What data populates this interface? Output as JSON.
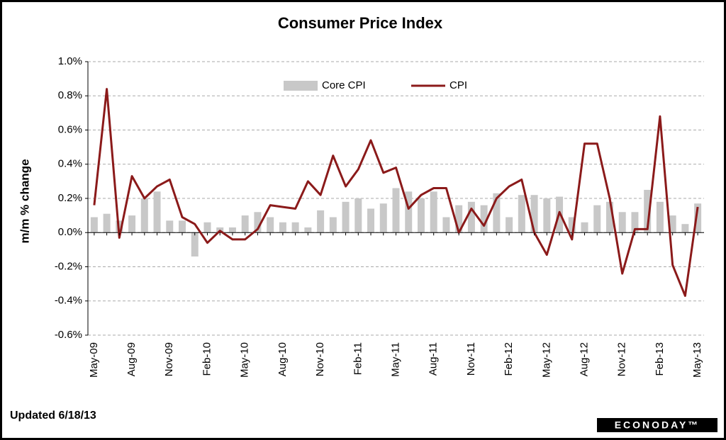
{
  "chart_data": {
    "type": "bar_line",
    "title": "Consumer Price Index",
    "y_label": "m/m % change",
    "footnote": "Updated 6/18/13",
    "source": "ECONODAY™",
    "categories": [
      "May-09",
      null,
      null,
      "Aug-09",
      null,
      null,
      "Nov-09",
      null,
      null,
      "Feb-10",
      null,
      null,
      "May-10",
      null,
      null,
      "Aug-10",
      null,
      null,
      "Nov-10",
      null,
      null,
      "Feb-11",
      null,
      null,
      "May-11",
      null,
      null,
      "Aug-11",
      null,
      null,
      "Nov-11",
      null,
      null,
      "Feb-12",
      null,
      null,
      "May-12",
      null,
      null,
      "Aug-12",
      null,
      null,
      "Nov-12",
      null,
      null,
      "Feb-13",
      null,
      null,
      "May-13"
    ],
    "series": [
      {
        "name": "Core CPI",
        "color": "#c8c8c8",
        "kind": "bar",
        "values": [
          0.09,
          0.11,
          0.07,
          0.1,
          0.2,
          0.24,
          0.07,
          0.07,
          -0.14,
          0.06,
          0.03,
          0.03,
          0.1,
          0.12,
          0.09,
          0.06,
          0.06,
          0.03,
          0.13,
          0.09,
          0.18,
          0.2,
          0.14,
          0.17,
          0.26,
          0.24,
          0.2,
          0.24,
          0.09,
          0.16,
          0.18,
          0.16,
          0.23,
          0.09,
          0.22,
          0.22,
          0.2,
          0.21,
          0.09,
          0.06,
          0.16,
          0.18,
          0.12,
          0.12,
          0.25,
          0.18,
          0.1,
          0.05,
          0.17
        ]
      },
      {
        "name": "CPI",
        "color": "#8b1a1a",
        "kind": "line",
        "values": [
          0.16,
          0.84,
          -0.03,
          0.33,
          0.2,
          0.27,
          0.31,
          0.09,
          0.05,
          -0.06,
          0.01,
          -0.04,
          -0.04,
          0.02,
          0.16,
          0.15,
          0.14,
          0.3,
          0.22,
          0.45,
          0.27,
          0.37,
          0.54,
          0.35,
          0.38,
          0.14,
          0.22,
          0.26,
          0.26,
          0.0,
          0.14,
          0.04,
          0.2,
          0.27,
          0.31,
          0.0,
          -0.13,
          0.12,
          -0.04,
          0.52,
          0.52,
          0.2,
          -0.24,
          0.02,
          0.02,
          0.68,
          -0.19,
          -0.37,
          0.15
        ]
      }
    ],
    "ylim": [
      -0.6,
      1.0
    ],
    "yticks": [
      {
        "value": -0.6,
        "label": "-0.6%"
      },
      {
        "value": -0.4,
        "label": "-0.4%"
      },
      {
        "value": -0.2,
        "label": "-0.2%"
      },
      {
        "value": 0.0,
        "label": "0.0%"
      },
      {
        "value": 0.2,
        "label": "0.2%"
      },
      {
        "value": 0.4,
        "label": "0.4%"
      },
      {
        "value": 0.6,
        "label": "0.6%"
      },
      {
        "value": 0.8,
        "label": "0.8%"
      },
      {
        "value": 1.0,
        "label": "1.0%"
      }
    ],
    "grid": true,
    "legend": "top"
  }
}
